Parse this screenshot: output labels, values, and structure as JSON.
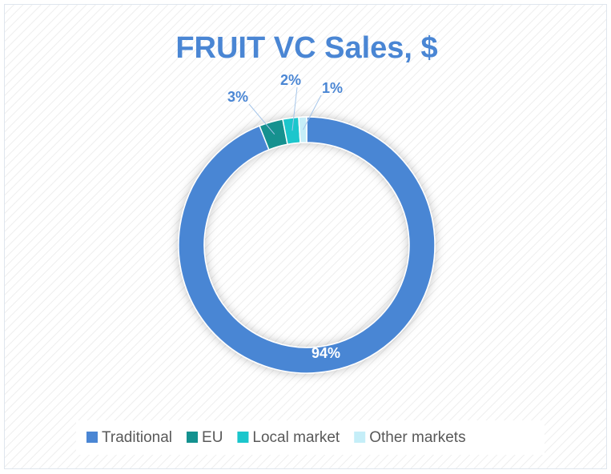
{
  "chart_data": {
    "type": "donut",
    "title": "FRUIT VC Sales, $",
    "categories": [
      "Traditional",
      "EU",
      "Local market",
      "Other markets"
    ],
    "values": [
      94,
      3,
      2,
      1
    ],
    "value_labels": [
      "94%",
      "3%",
      "2%",
      "1%"
    ],
    "colors": [
      "#4a86d4",
      "#13918f",
      "#1bc6cc",
      "#c5eef8"
    ],
    "legend": "bottom"
  }
}
